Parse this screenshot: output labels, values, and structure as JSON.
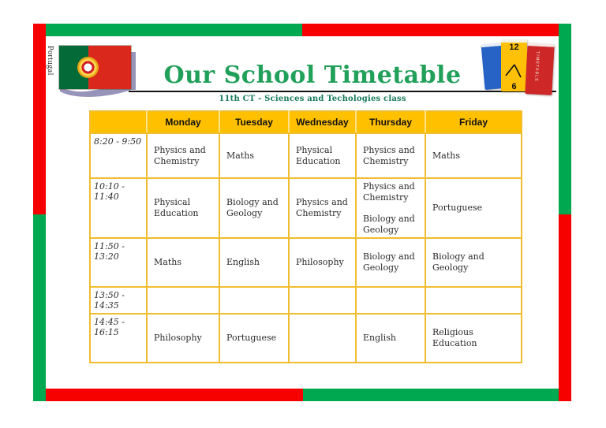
{
  "flag": {
    "country_label": "Portugal"
  },
  "header": {
    "title": "Our School Timetable",
    "subtitle": "11th CT - Sciences and Techologies class"
  },
  "books_icon": {
    "clock_top_number": "12",
    "clock_bottom_number": "6",
    "spine_text": "TIMETABLE"
  },
  "colors": {
    "frame_red": "#f60000",
    "frame_green": "#00a94f",
    "title_green": "#21a05a",
    "subtitle_green": "#167a5a",
    "header_gold": "#ffc000",
    "table_border_gold": "#f0bd2f",
    "header_divider": "#ffe18a",
    "cell_text": "#2b2b2b",
    "flag_shadow": "#9794ba",
    "book_blue": "#2763c4",
    "book_yellow": "#ffc008",
    "book_red": "#cd2727"
  },
  "timetable": {
    "columns": [
      "Monday",
      "Tuesday",
      "Wednesday",
      "Thursday",
      "Friday"
    ],
    "rows": [
      {
        "time": "8:20 - 9:50",
        "cells": [
          [
            "Physics and Chemistry"
          ],
          [
            "Maths"
          ],
          [
            "Physical Education"
          ],
          [
            "Physics and Chemistry"
          ],
          [
            "Maths"
          ]
        ]
      },
      {
        "time": "10:10 - 11:40",
        "cells": [
          [
            "Physical Education"
          ],
          [
            "Biology and Geology"
          ],
          [
            "Physics and Chemistry"
          ],
          [
            "Physics and Chemistry",
            "Biology and Geology"
          ],
          [
            "Portuguese"
          ]
        ]
      },
      {
        "time": "11:50 - 13:20",
        "cells": [
          [
            "Maths"
          ],
          [
            "English"
          ],
          [
            "Philosophy"
          ],
          [
            "Biology and Geology"
          ],
          [
            "Biology and Geology"
          ]
        ]
      },
      {
        "time": "13:50 - 14:35",
        "cells": [
          [],
          [],
          [],
          [],
          []
        ]
      },
      {
        "time": "14:45 - 16:15",
        "cells": [
          [
            "Philosophy"
          ],
          [
            "Portuguese"
          ],
          [],
          [
            "English"
          ],
          [
            "Religious Education"
          ]
        ]
      }
    ]
  }
}
